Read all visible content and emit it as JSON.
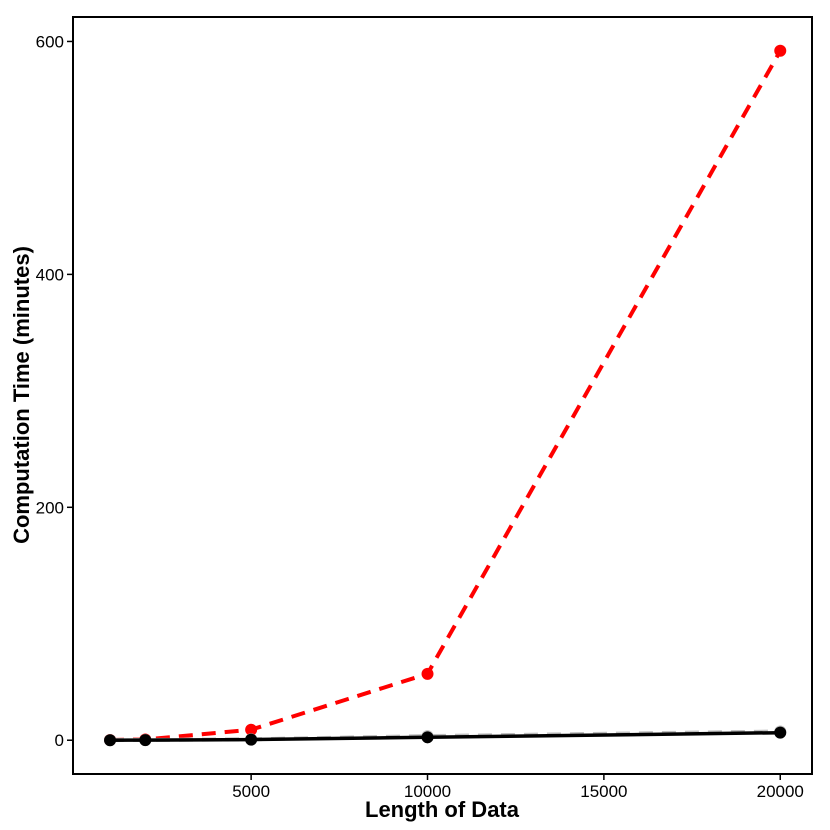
{
  "chart_data": {
    "type": "line",
    "title": "",
    "xlabel": "Length of Data",
    "ylabel": "Computation Time (minutes)",
    "xlim": [
      -50,
      20900
    ],
    "ylim": [
      -29,
      621
    ],
    "xticks": [
      5000,
      10000,
      15000,
      20000
    ],
    "yticks": [
      0,
      200,
      400,
      600
    ],
    "grid": false,
    "legend": "none",
    "series": [
      {
        "x": [
          1000,
          2000,
          5000,
          10000,
          20000
        ],
        "y": [
          0.2,
          0.6,
          9,
          57,
          592
        ],
        "color": "#ff0000",
        "style": "dashed"
      },
      {
        "x": [
          1000,
          2000,
          5000,
          10000,
          20000
        ],
        "y": [
          0.1,
          0.2,
          0.8,
          3.5,
          7.5
        ],
        "color": "#bfbfbf",
        "style": "dashed"
      },
      {
        "x": [
          1000,
          2000,
          5000,
          10000,
          20000
        ],
        "y": [
          0,
          0.1,
          0.5,
          2.5,
          6.5
        ],
        "color": "#000000",
        "style": "solid"
      }
    ]
  }
}
